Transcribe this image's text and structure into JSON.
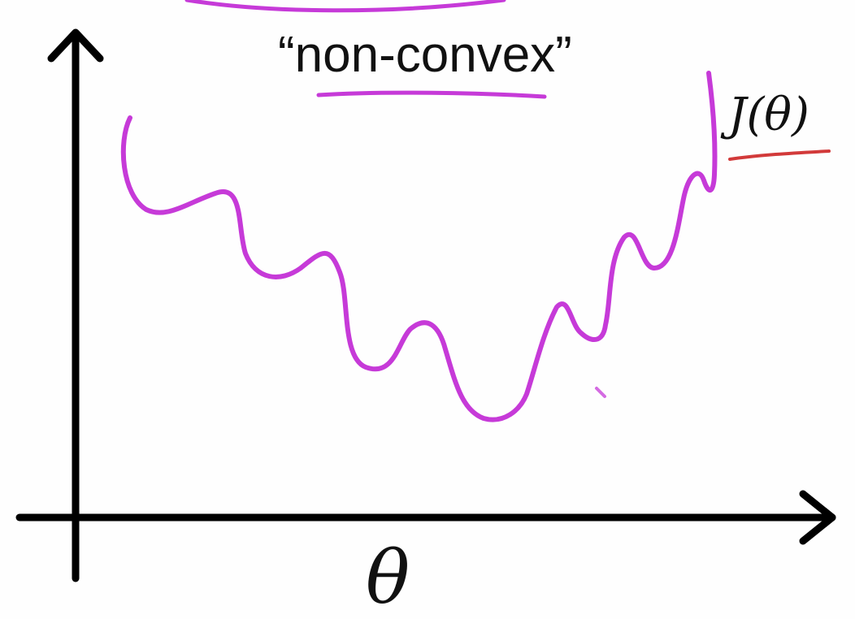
{
  "title": "“non-convex”",
  "curve_label": "J(θ)",
  "x_axis_label": "θ",
  "colors": {
    "background": "#fefefe",
    "axis": "#000000",
    "curve": "#c63ad8",
    "title_underline": "#c63ad8",
    "label_underline": "#d23a3a",
    "text": "#111111"
  },
  "icons": {
    "y_axis_arrow": "arrow-up-icon",
    "x_axis_arrow": "arrow-right-icon"
  }
}
